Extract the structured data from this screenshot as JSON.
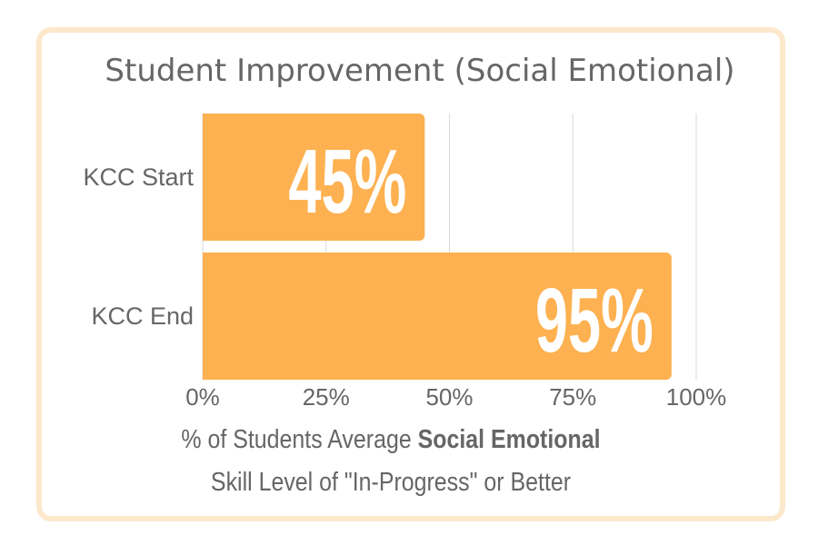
{
  "chart_data": {
    "type": "bar",
    "orientation": "horizontal",
    "title": "Student Improvement (Social Emotional)",
    "categories": [
      "KCC Start",
      "KCC End"
    ],
    "values": [
      45,
      95
    ],
    "value_labels": [
      "45%",
      "95%"
    ],
    "xlim": [
      0,
      100
    ],
    "x_ticks": [
      "0%",
      "25%",
      "50%",
      "75%",
      "100%"
    ],
    "grid": true,
    "xlabel_line1_prefix": "% of Students Average ",
    "xlabel_line1_bold": "Social Emotional",
    "xlabel_line2": "Skill Level of \"In-Progress\" or Better"
  },
  "colors": {
    "bar": "#fdb150",
    "card_border": "#fde8cc",
    "text": "#666666",
    "grid": "#d9d9d9",
    "value_label": "#ffffff"
  }
}
